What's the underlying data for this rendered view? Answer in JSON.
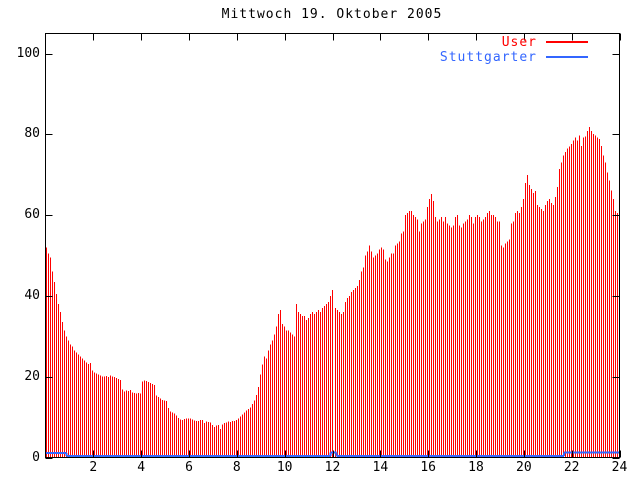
{
  "title": "Mittwoch 19. Oktober 2005",
  "legend": {
    "entries": [
      {
        "label": "User",
        "color": "#ff0000"
      },
      {
        "label": "Stuttgarter",
        "color": "#3366ff"
      }
    ]
  },
  "colors": {
    "user": "#ff0000",
    "stuttgarter": "#3366ff",
    "axis": "#000000",
    "background": "#ffffff"
  },
  "chart_data": {
    "type": "bar",
    "title": "Mittwoch 19. Oktober 2005",
    "xlabel": "",
    "ylabel": "",
    "xlim": [
      0,
      24
    ],
    "ylim": [
      0,
      105
    ],
    "x_ticks": [
      2,
      4,
      6,
      8,
      10,
      12,
      14,
      16,
      18,
      20,
      22,
      24
    ],
    "y_ticks": [
      0,
      20,
      40,
      60,
      80,
      100
    ],
    "grid": false,
    "legend_position": "top-right-inside",
    "sample_interval_hours": 0.083333,
    "series": [
      {
        "name": "User",
        "style": "impulses",
        "color": "#ff0000",
        "x_start": 0,
        "x_step": 0.083333,
        "values": [
          52,
          50.5,
          49.5,
          46,
          43.5,
          40.5,
          38,
          36,
          33.5,
          31.5,
          30,
          29,
          28,
          27.5,
          26.5,
          26,
          25.5,
          25,
          24.5,
          24,
          23.5,
          23.2,
          23.4,
          21.5,
          21,
          20.8,
          20.5,
          20.3,
          20.1,
          20,
          20.2,
          19.9,
          20.3,
          20.1,
          19.9,
          19.7,
          19.4,
          19.2,
          16.8,
          16.4,
          16.6,
          16.5,
          16.7,
          16.1,
          16,
          15.8,
          16,
          15.9,
          18.8,
          19.1,
          18.9,
          18.7,
          18.4,
          18.2,
          18,
          15.4,
          15,
          14.6,
          14.3,
          14.1,
          14,
          12.2,
          11.4,
          11.1,
          10.9,
          10.4,
          9.8,
          9.4,
          9.3,
          9.5,
          9.6,
          9.7,
          9.7,
          9.4,
          9.2,
          9.1,
          9.1,
          9.3,
          9.3,
          8.6,
          8.9,
          8.8,
          8.7,
          8,
          7.6,
          7.9,
          8,
          7,
          8.2,
          8.6,
          8.7,
          8.9,
          8.8,
          9,
          9.1,
          9.3,
          9.6,
          10.2,
          10.6,
          11.2,
          11.6,
          12,
          12.4,
          13.2,
          14.1,
          15.5,
          17.5,
          20.5,
          23,
          25,
          24.5,
          26.5,
          28,
          29,
          30.5,
          32.5,
          35.5,
          36.5,
          33,
          32.5,
          31.5,
          31.5,
          31,
          30.5,
          30,
          38,
          36,
          35.5,
          35,
          35,
          34,
          34.5,
          35.5,
          36,
          35.5,
          36,
          36.5,
          36,
          37,
          37.5,
          38,
          38.5,
          40,
          41.5,
          1.5,
          37,
          36.5,
          36,
          35.5,
          36,
          38.5,
          39.5,
          40,
          41,
          41.5,
          42,
          42.5,
          44,
          46,
          47,
          50,
          51,
          52.5,
          51,
          49.5,
          50,
          50.5,
          51.5,
          52,
          51.5,
          49,
          48.5,
          49.5,
          50.5,
          50.5,
          52.5,
          53,
          53.5,
          55.5,
          56,
          60,
          60.5,
          61,
          61,
          60,
          59.5,
          59,
          56,
          58,
          58.5,
          59,
          62,
          64,
          65.3,
          63.5,
          59.5,
          58.5,
          59,
          59.5,
          58.5,
          59.5,
          58,
          57.5,
          57,
          57.5,
          59.5,
          60,
          57.5,
          57,
          58,
          58.5,
          59,
          60,
          59.5,
          58,
          59.5,
          60,
          59.5,
          58.5,
          59,
          59.5,
          60.5,
          61,
          60,
          60,
          59.5,
          58.5,
          58.5,
          52.5,
          52,
          53,
          53.5,
          54,
          58,
          58.5,
          60.5,
          61,
          60.5,
          62,
          64,
          68,
          70,
          67.5,
          66.5,
          65.5,
          66,
          62.5,
          62,
          61.5,
          61,
          62.5,
          63.5,
          64,
          63,
          62.5,
          64.5,
          67,
          71.5,
          73,
          74.8,
          75.6,
          76.5,
          77,
          77.6,
          78.5,
          79.3,
          78.5,
          79.7,
          77.2,
          79.3,
          79.5,
          80.9,
          81.8,
          80.9,
          80.1,
          79.7,
          79.3,
          78.9,
          77.2,
          74.8,
          73.1,
          70.6,
          68.6,
          66.1,
          64,
          61,
          60.5,
          61.5
        ]
      },
      {
        "name": "Stuttgarter",
        "style": "line",
        "color": "#3366ff",
        "segments": [
          {
            "x0": 0,
            "x1": 0.88,
            "y": 1.1
          },
          {
            "x0": 0.88,
            "x1": 11.92,
            "y": 0.4
          },
          {
            "x0": 11.92,
            "x1": 12.17,
            "y": 1.3
          },
          {
            "x0": 12.17,
            "x1": 21.67,
            "y": 0.4
          },
          {
            "x0": 21.67,
            "x1": 24,
            "y": 1.3
          }
        ]
      }
    ]
  }
}
